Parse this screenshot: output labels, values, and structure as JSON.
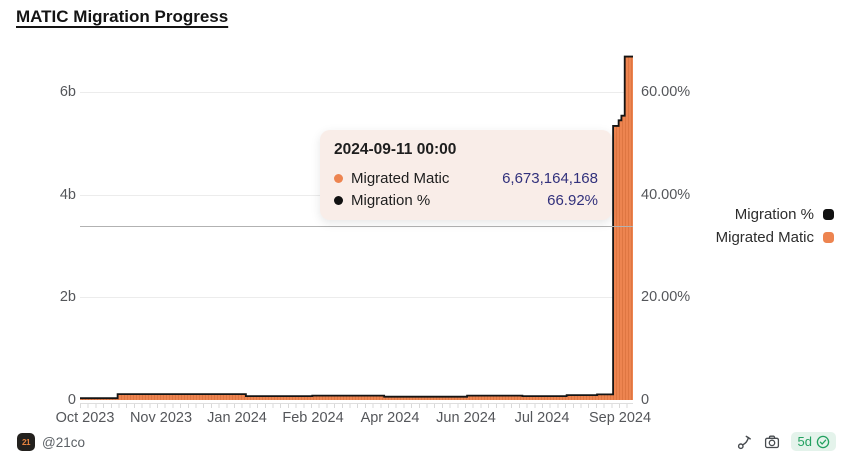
{
  "page": {
    "title": "MATIC Migration Progress"
  },
  "tooltip": {
    "title": "2024-09-11 00:00",
    "rows": [
      {
        "label": "Migrated Matic",
        "value": "6,673,164,168",
        "dot_color": "#ed8450"
      },
      {
        "label": "Migration %",
        "value": "66.92%",
        "dot_color": "#111111"
      }
    ]
  },
  "legend": {
    "items": [
      {
        "label": "Migration %",
        "color": "#111111"
      },
      {
        "label": "Migrated Matic",
        "color": "#ed8450"
      }
    ]
  },
  "footer": {
    "author": "@21co",
    "avatar_text": "21",
    "icons": [
      "fork-icon",
      "camera-icon"
    ],
    "badge_text": "5d",
    "badge_icon": "check-circle-icon",
    "badge_color": "#22a05f"
  },
  "chart_data": {
    "type": "bar",
    "title": "MATIC Migration Progress",
    "note": "daily bars (Migrated Matic, left axis) with cumulative Migration % line (right axis); hovered point 2024-09-11",
    "x_axis": {
      "labels": [
        "Oct 2023",
        "Nov 2023",
        "Jan 2024",
        "Feb 2024",
        "Apr 2024",
        "Jun 2024",
        "Jul 2024",
        "Sep 2024"
      ],
      "range": [
        "Oct 2023",
        "Sep 2024"
      ]
    },
    "left_axis": {
      "ticks": [
        "6b",
        "4b",
        "2b",
        "0"
      ],
      "label": "Migrated Matic"
    },
    "right_axis": {
      "ticks": [
        "60.00%",
        "40.00%",
        "20.00%",
        "0"
      ],
      "label": "Migration %"
    },
    "ylim_left": [
      0,
      6820000000
    ],
    "ylim_right": [
      0,
      68.2
    ],
    "grid": true,
    "legend_position": "right",
    "series": [
      {
        "name": "Migrated Matic",
        "type": "bar",
        "axis": "left",
        "color": "#ed8450",
        "points": [
          [
            0.0,
            35000000
          ],
          [
            0.068,
            115000000
          ],
          [
            0.3,
            75000000
          ],
          [
            0.42,
            85000000
          ],
          [
            0.55,
            65000000
          ],
          [
            0.7,
            85000000
          ],
          [
            0.8,
            75000000
          ],
          [
            0.88,
            95000000
          ],
          [
            0.935,
            110000000
          ],
          [
            0.964,
            5340000000
          ],
          [
            0.974,
            5450000000
          ],
          [
            0.979,
            5540000000
          ],
          [
            0.985,
            6673164168
          ],
          [
            1.0,
            6673164168
          ]
        ]
      },
      {
        "name": "Migration %",
        "type": "line",
        "axis": "right",
        "color": "#141414",
        "points": [
          [
            0.0,
            0.35
          ],
          [
            0.068,
            1.15
          ],
          [
            0.3,
            0.75
          ],
          [
            0.42,
            0.85
          ],
          [
            0.55,
            0.65
          ],
          [
            0.7,
            0.85
          ],
          [
            0.8,
            0.75
          ],
          [
            0.88,
            0.95
          ],
          [
            0.935,
            1.1
          ],
          [
            0.964,
            53.4
          ],
          [
            0.974,
            54.5
          ],
          [
            0.979,
            55.4
          ],
          [
            0.985,
            66.92
          ],
          [
            1.0,
            66.92
          ]
        ]
      }
    ]
  }
}
